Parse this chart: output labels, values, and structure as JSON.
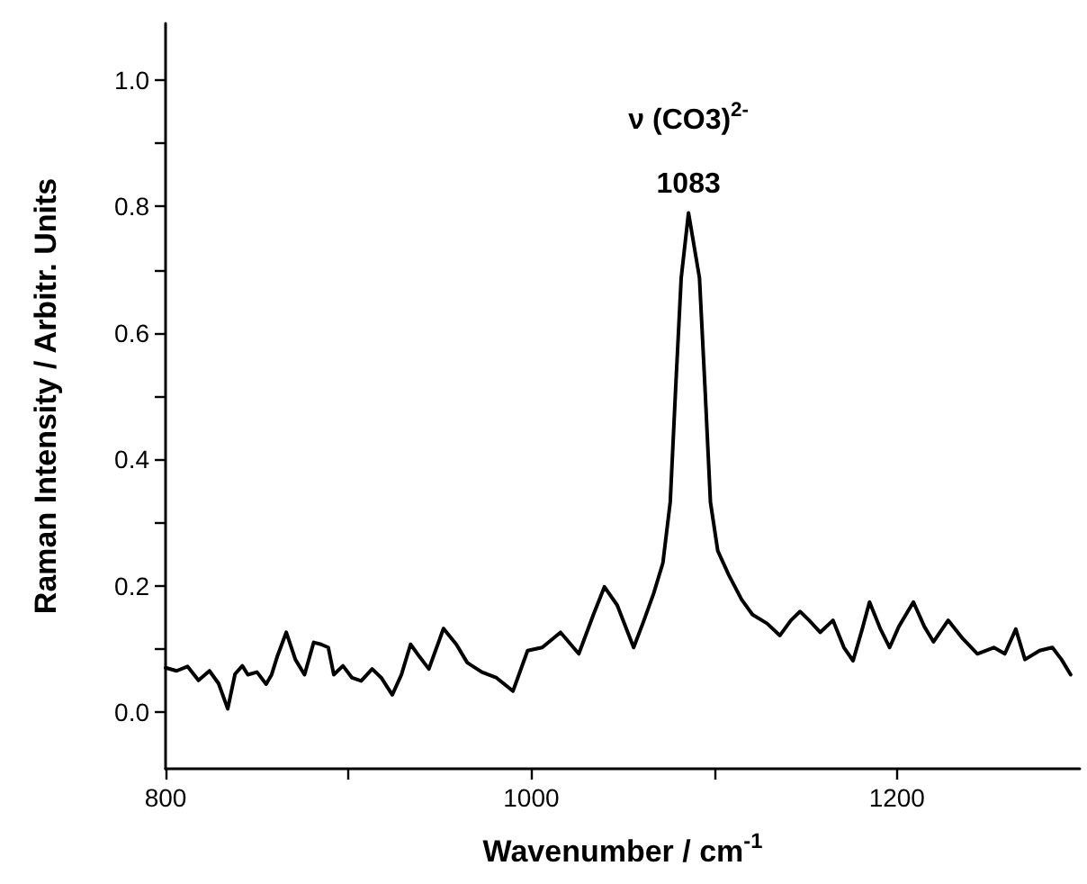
{
  "chart_data": {
    "type": "line",
    "xlabel": "Wavenumber / cm$^{-1}$",
    "ylabel": "Raman Intensity / Arbitr. Units",
    "annotations": [
      "ν (CO3)$^{2-}$",
      "1083"
    ],
    "series": [
      {
        "color": "#000000",
        "x": [
          800,
          806,
          812,
          818,
          824,
          829,
          834,
          838,
          842,
          845,
          850,
          855,
          858,
          861,
          866,
          871,
          876,
          881,
          885,
          889,
          892,
          897,
          902,
          907,
          913,
          918,
          924,
          929,
          934,
          939,
          944,
          952,
          959,
          965,
          973,
          981,
          990,
          998,
          1006,
          1016,
          1026,
          1034,
          1040,
          1047,
          1056,
          1061,
          1067,
          1072,
          1076,
          1079,
          1082,
          1086,
          1092,
          1095,
          1098,
          1102,
          1108,
          1115,
          1121,
          1129,
          1136,
          1142,
          1147,
          1152,
          1158,
          1165,
          1171,
          1176,
          1181,
          1185,
          1191,
          1196,
          1201,
          1209,
          1215,
          1220,
          1228,
          1236,
          1244,
          1253,
          1259,
          1265,
          1270,
          1278,
          1285,
          1290,
          1295
        ],
        "values": [
          0.07,
          0.065,
          0.072,
          0.05,
          0.065,
          0.045,
          0.005,
          0.06,
          0.073,
          0.059,
          0.063,
          0.044,
          0.059,
          0.087,
          0.126,
          0.083,
          0.059,
          0.11,
          0.107,
          0.102,
          0.059,
          0.073,
          0.054,
          0.049,
          0.068,
          0.054,
          0.027,
          0.059,
          0.107,
          0.087,
          0.068,
          0.132,
          0.107,
          0.078,
          0.063,
          0.054,
          0.033,
          0.097,
          0.102,
          0.126,
          0.092,
          0.154,
          0.198,
          0.169,
          0.102,
          0.14,
          0.188,
          0.236,
          0.332,
          0.514,
          0.687,
          0.79,
          0.687,
          0.514,
          0.332,
          0.255,
          0.217,
          0.178,
          0.154,
          0.14,
          0.121,
          0.145,
          0.159,
          0.145,
          0.126,
          0.145,
          0.102,
          0.081,
          0.131,
          0.174,
          0.131,
          0.102,
          0.135,
          0.174,
          0.135,
          0.111,
          0.145,
          0.116,
          0.092,
          0.102,
          0.092,
          0.131,
          0.083,
          0.097,
          0.102,
          0.083,
          0.059
        ]
      }
    ],
    "xlim": [
      800,
      1300
    ],
    "ylim": [
      -0.09,
      1.09
    ],
    "xticks": [
      800,
      {
        "value": 900,
        "label": null
      },
      1000,
      {
        "value": 1100,
        "label": null
      },
      1200
    ],
    "yticks": [
      {
        "value": 0,
        "label": "0.0"
      },
      {
        "value": 0.1,
        "label": null
      },
      {
        "value": 0.2,
        "label": "0.2"
      },
      {
        "value": 0.3,
        "label": null
      },
      {
        "value": 0.4,
        "label": "0.4"
      },
      {
        "value": 0.5,
        "label": null
      },
      {
        "value": 0.6,
        "label": "0.6"
      },
      {
        "value": 0.7,
        "label": null
      },
      {
        "value": 0.8,
        "label": "0.8"
      },
      {
        "value": 0.9,
        "label": null
      },
      {
        "value": 1,
        "label": "1.0"
      }
    ],
    "grid": false,
    "marker": "none",
    "line_style": "solid"
  }
}
